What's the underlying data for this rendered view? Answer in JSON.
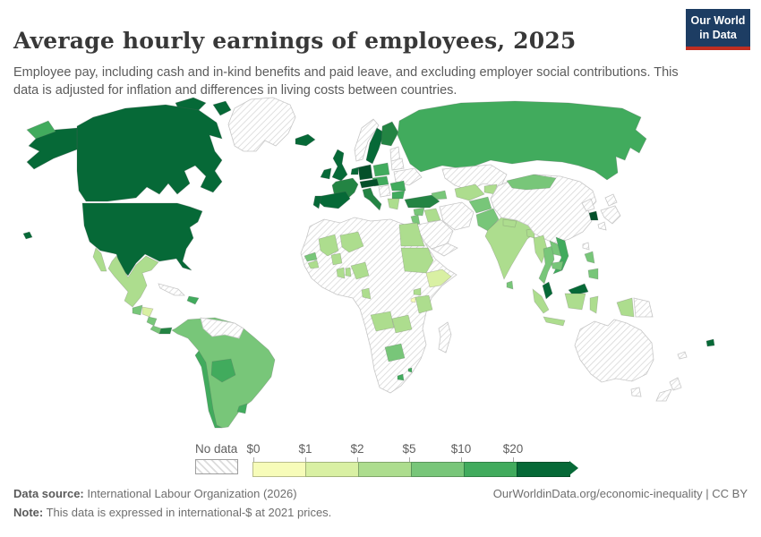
{
  "header": {
    "title": "Average hourly earnings of employees, 2025",
    "subtitle": "Employee pay, including cash and in-kind benefits and paid leave, and excluding employer social contributions. This data is adjusted for inflation and differences in living costs between countries."
  },
  "logo": {
    "line1": "Our World",
    "line2": "in Data",
    "bg_color": "#1d3d63",
    "accent_color": "#bf2e21"
  },
  "legend": {
    "no_data_label": "No data",
    "tick_labels": [
      "$0",
      "$1",
      "$2",
      "$5",
      "$10",
      "$20"
    ],
    "bin_colors": [
      "#f7fcb9",
      "#d9f0a3",
      "#addd8e",
      "#78c679",
      "#41ab5d",
      "#066937"
    ]
  },
  "footer": {
    "datasource_label": "Data source:",
    "datasource_value": "International Labour Organization (2026)",
    "note_label": "Note:",
    "note_value": "This data is expressed in international-$ at 2021 prices.",
    "link_text": "OurWorldinData.org/economic-inequality | CC BY"
  },
  "chart_data": {
    "type": "choropleth",
    "title": "Average hourly earnings of employees, 2025",
    "year": 2025,
    "unit": "international-$ at 2021 prices",
    "legend_thresholds": [
      "$0",
      "$1",
      "$2",
      "$5",
      "$10",
      "$20"
    ],
    "legend_position": "bottom",
    "no_data_style": "diagonal-hatch",
    "palette": [
      "no-data",
      "#f7fcb9",
      "#d9f0a3",
      "#addd8e",
      "#78c679",
      "#41ab5d",
      "#238443",
      "#066937",
      "#04502a"
    ],
    "level_meaning": {
      "0": "No data",
      "1": "$0-$1",
      "2": "$1-$2",
      "3": "$2-$5",
      "4": "$5-$10",
      "5": "$10-$20",
      "6": "~$20",
      "7": "$20+",
      "8": "$20+ (highest)"
    },
    "regions": {
      "greenland": 0,
      "canada-arctic-1": 7,
      "canada-arctic-2": 7,
      "canada": 7,
      "alaska": 7,
      "chukotka": 5,
      "usa": 7,
      "hawaii": 7,
      "mexico-baja": 3,
      "mexico": 3,
      "guatemala": 4,
      "honduras": 2,
      "nicaragua": 4,
      "costa-rica": 4,
      "panama": 6,
      "cuba": 0,
      "hispaniola": 5,
      "venezuela-guyanas": 0,
      "south-america": 4,
      "bolivia": 5,
      "chile": 5,
      "uruguay": 5,
      "iceland": 7,
      "uk": 7,
      "ireland": 7,
      "norway": 0,
      "sweden": 7,
      "finland": 6,
      "denmark": 7,
      "baltics": 0,
      "poland": 5,
      "belarus": 0,
      "ukraine": 0,
      "czech-hungary": 5,
      "romania": 5,
      "west-balkans": 0,
      "bulgaria": 5,
      "greece": 3,
      "benelux": 7,
      "germany": 8,
      "france": 6,
      "switzerland-austria": 8,
      "spain": 7,
      "portugal": 7,
      "italy": 6,
      "russia": 5,
      "kazakhstan": 0,
      "caucasus": 4,
      "turkey": 6,
      "syria": 4,
      "israel-jordan": 4,
      "iraq": 3,
      "saudi-arabia": 0,
      "yemen-oman": 0,
      "iran": 0,
      "uzbekistan-turkmenistan": 3,
      "kyrgyzstan-tajikistan": 3,
      "afghanistan": 4,
      "pakistan": 4,
      "india": 3,
      "nepal": 3,
      "bangladesh": 3,
      "sri-lanka": 4,
      "china": 0,
      "mongolia": 4,
      "north-korea": 0,
      "south-korea": 8,
      "japan-hokkaido": 0,
      "japan-honshu": 0,
      "japan-kyushu": 0,
      "taiwan": 0,
      "myanmar": 3,
      "thailand": 4,
      "laos": 4,
      "vietnam": 5,
      "cambodia": 4,
      "malaysia-peninsula": 7,
      "malaysia-borneo": 7,
      "sumatra": 3,
      "java": 3,
      "indonesian-borneo": 3,
      "sulawesi": 3,
      "west-papua": 3,
      "papua-new-guinea": 0,
      "philippines-luzon": 4,
      "philippines-mindanao": 4,
      "africa-nodata-base": 0,
      "egypt": 3,
      "sudan": 3,
      "ethiopia": 2,
      "mali": 3,
      "senegal": 4,
      "guinea": 3,
      "burkina-faso": 3,
      "ghana": 3,
      "niger": 3,
      "nigeria": 3,
      "benin-togo": 3,
      "gabon-congo": 3,
      "uganda": 3,
      "rwanda": 1,
      "tanzania": 3,
      "angola": 3,
      "zambia": 3,
      "botswana": 4,
      "lesotho": 5,
      "eswatini": 5,
      "madagascar": 0,
      "australia": 0,
      "tasmania": 0,
      "new-zealand-north": 0,
      "new-zealand-south": 0,
      "fiji": 7,
      "new-caledonia": 0
    }
  }
}
